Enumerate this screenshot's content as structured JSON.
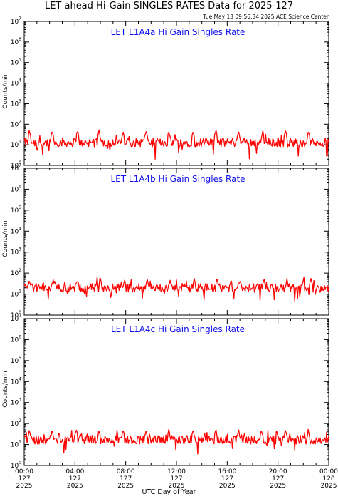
{
  "header": {
    "title": "LET ahead Hi-Gain SINGLES RATES Data for 2025-127",
    "timestamp": "Tue May 13 09:56:34 2025 ACE Science Center"
  },
  "chart_data": [
    {
      "type": "line",
      "title": "LET L1A4a Hi Gain Singles Rate",
      "ylabel": "Counts/min",
      "yscale": "log",
      "ylim": [
        1,
        10000000
      ],
      "yticks": [
        "10^0",
        "10^1",
        "10^2",
        "10^3",
        "10^4",
        "10^5",
        "10^6",
        "10^7"
      ],
      "xlim": [
        "2025-127 00:00",
        "2025-128 00:00"
      ],
      "line_color": "#ff0000",
      "series": [
        {
          "baseline": 13,
          "spike_hours": [
            0.4,
            2.2,
            4.2,
            5.9,
            7.8,
            9.6,
            11.4,
            13.3,
            15.1,
            16.9,
            18.8,
            20.6,
            22.4
          ],
          "spike_peak": 60,
          "min": 3
        }
      ]
    },
    {
      "type": "line",
      "title": "LET L1A4b Hi Gain Singles Rate",
      "ylabel": "Counts/min",
      "yscale": "log",
      "ylim": [
        1,
        10000000
      ],
      "yticks": [
        "10^0",
        "10^1",
        "10^2",
        "10^3",
        "10^4",
        "10^5",
        "10^6",
        "10^7"
      ],
      "xlim": [
        "2025-127 00:00",
        "2025-128 00:00"
      ],
      "line_color": "#ff0000",
      "series": [
        {
          "baseline": 20,
          "spike_hours": [
            0.4,
            2.3,
            4.2,
            6.0,
            7.9,
            9.7,
            11.5,
            13.4,
            15.2,
            17.0,
            18.9,
            20.7,
            22.6
          ],
          "spike_peak": 60,
          "min": 7
        }
      ]
    },
    {
      "type": "line",
      "title": "LET L1A4c Hi Gain Singles Rate",
      "ylabel": "Counts/min",
      "yscale": "log",
      "ylim": [
        1,
        10000000
      ],
      "yticks": [
        "10^0",
        "10^1",
        "10^2",
        "10^3",
        "10^4",
        "10^5",
        "10^6",
        "10^7"
      ],
      "xlim": [
        "2025-127 00:00",
        "2025-128 00:00"
      ],
      "line_color": "#ff0000",
      "series": [
        {
          "baseline": 17,
          "spike_hours": [
            0.4,
            2.2,
            4.1,
            5.9,
            7.8,
            9.6,
            11.4,
            13.3,
            15.1,
            16.9,
            18.7,
            20.6,
            22.4
          ],
          "spike_peak": 60,
          "min": 5
        }
      ]
    }
  ],
  "x_axis": {
    "label": "UTC Day of Year",
    "ticks": [
      {
        "time": "00:00",
        "day": "127",
        "year": "2025"
      },
      {
        "time": "04:00",
        "day": "127",
        "year": "2025"
      },
      {
        "time": "08:00",
        "day": "127",
        "year": "2025"
      },
      {
        "time": "12:00",
        "day": "127",
        "year": "2025"
      },
      {
        "time": "16:00",
        "day": "127",
        "year": "2025"
      },
      {
        "time": "20:00",
        "day": "127",
        "year": "2025"
      },
      {
        "time": "00:00",
        "day": "128",
        "year": "2025"
      }
    ]
  }
}
